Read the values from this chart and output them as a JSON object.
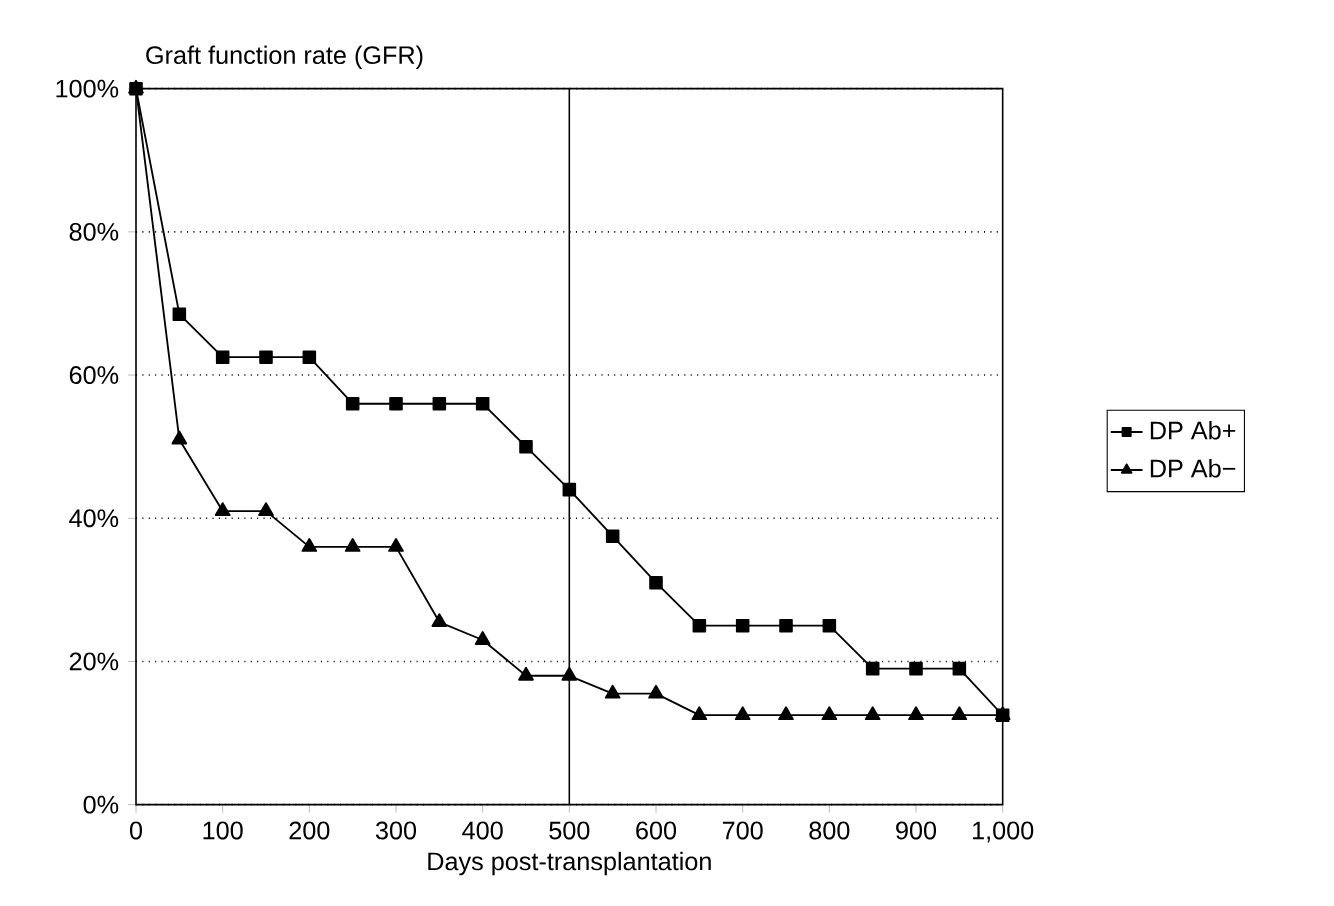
{
  "chart_data": {
    "type": "line",
    "ylabel": "Graft function rate (GFR)",
    "xlabel": "Days post-transplantation",
    "x": [
      0,
      50,
      100,
      150,
      200,
      250,
      300,
      350,
      400,
      450,
      500,
      550,
      600,
      650,
      700,
      750,
      800,
      850,
      900,
      950,
      1000
    ],
    "series": [
      {
        "name": "DP Ab+",
        "color": "#000000",
        "marker": "square",
        "values": [
          100,
          68.5,
          62.5,
          62.5,
          62.5,
          56,
          56,
          56,
          56,
          50,
          44,
          37.5,
          31,
          25,
          25,
          25,
          25,
          19,
          19,
          19,
          12.5
        ]
      },
      {
        "name": "DP Ab−",
        "color": "#000000",
        "marker": "triangle",
        "values": [
          100,
          51,
          41,
          41,
          36,
          36,
          36,
          25.5,
          23,
          18,
          18,
          15.5,
          15.5,
          12.5,
          12.5,
          12.5,
          12.5,
          12.5,
          12.5,
          12.5,
          12.5
        ]
      }
    ],
    "xlim": [
      0,
      1000
    ],
    "xticks": [
      0,
      100,
      200,
      300,
      400,
      500,
      600,
      700,
      800,
      900,
      {
        "value": 1000,
        "label": "1,000"
      }
    ],
    "ylim": [
      0,
      100
    ],
    "yticks": [
      {
        "value": 0,
        "label": "0%"
      },
      {
        "value": 20,
        "label": "20%"
      },
      {
        "value": 40,
        "label": "40%"
      },
      {
        "value": 60,
        "label": "60%"
      },
      {
        "value": 80,
        "label": "80%"
      },
      {
        "value": 100,
        "label": "100%"
      }
    ],
    "ref_lines": [
      {
        "axis": "x",
        "value": 500,
        "line_style": "solid"
      }
    ],
    "grid": "y",
    "legend": "right",
    "line_style": "solid"
  }
}
